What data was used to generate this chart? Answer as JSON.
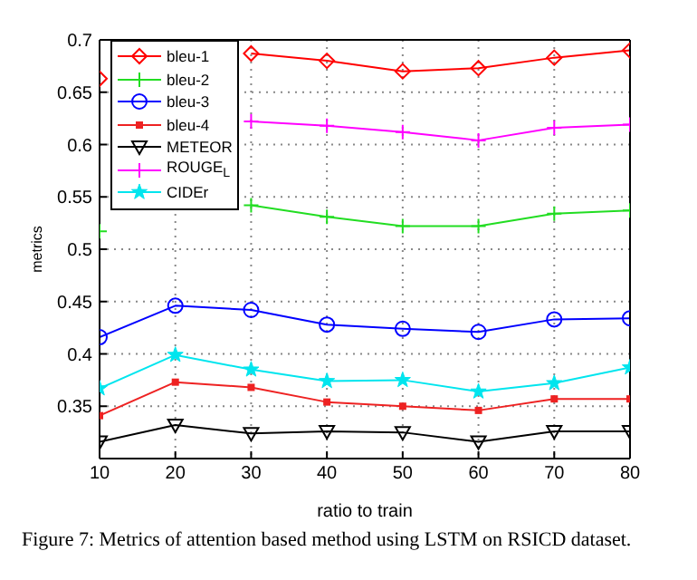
{
  "chart_data": {
    "type": "line",
    "xlabel": "ratio to train",
    "ylabel": "metrics",
    "annotations": [
      "Figure 7: Metrics of attention based method using LSTM on RSICD dataset."
    ],
    "x": [
      10,
      20,
      30,
      40,
      50,
      60,
      70,
      80
    ],
    "xlim": [
      10,
      80
    ],
    "xticks": [
      10,
      20,
      30,
      40,
      50,
      60,
      70,
      80
    ],
    "ylim": [
      0.3,
      0.7
    ],
    "yticks": [
      0.35,
      0.4,
      0.45,
      0.5,
      0.55,
      0.6,
      0.65,
      0.7
    ],
    "grid": true,
    "legend": "top left",
    "line_style": "solid",
    "series": [
      {
        "name": "bleu-1",
        "color": "#ff0000",
        "marker": "diamond",
        "values": [
          0.663,
          null,
          0.687,
          0.68,
          0.67,
          0.673,
          0.683,
          0.69
        ]
      },
      {
        "name": "bleu-2",
        "color": "#22dd22",
        "marker": "cross",
        "values": [
          0.517,
          null,
          0.542,
          0.531,
          0.522,
          0.522,
          0.534,
          0.537
        ]
      },
      {
        "name": "bleu-3",
        "color": "#0000ff",
        "marker": "circle",
        "values": [
          0.416,
          0.446,
          0.442,
          0.428,
          0.424,
          0.421,
          0.433,
          0.434
        ]
      },
      {
        "name": "bleu-4",
        "color": "#ee2222",
        "marker": "square",
        "values": [
          0.341,
          0.373,
          0.368,
          0.354,
          0.35,
          0.346,
          0.357,
          0.357
        ]
      },
      {
        "name": "METEOR",
        "color": "#000000",
        "marker": "triangle",
        "values": [
          0.316,
          0.332,
          0.324,
          0.326,
          0.325,
          0.316,
          0.326,
          0.326
        ]
      },
      {
        "name": "ROUGE$_{L}$",
        "color": "#ff00ff",
        "marker": "cross",
        "values": [
          null,
          null,
          0.622,
          0.618,
          0.612,
          0.604,
          0.616,
          0.619
        ]
      },
      {
        "name": "CIDEr",
        "color": "#00e5ee",
        "marker": "star",
        "values": [
          0.367,
          0.399,
          0.385,
          0.374,
          0.375,
          0.364,
          0.372,
          0.387
        ]
      }
    ]
  }
}
